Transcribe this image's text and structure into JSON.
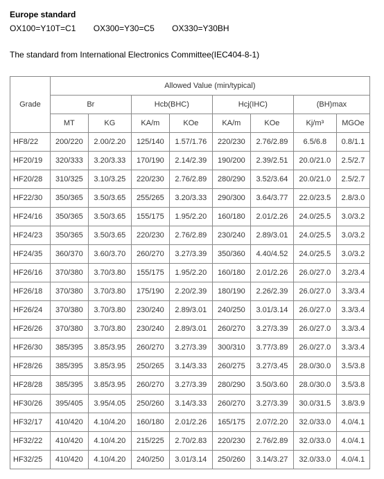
{
  "header": {
    "title": "Europe standard",
    "codes": [
      "OX100=Y10T=C1",
      "OX300=Y30=C5",
      "OX330=Y30BH"
    ],
    "subtitle": "The standard from International Electronics Committee(IEC404-8-1)"
  },
  "table": {
    "top_header": "Allowed Value (min/typical)",
    "grade_label": "Grade",
    "group_headers": [
      "Br",
      "Hcb(BHC)",
      "Hcj(IHC)",
      "(BH)max"
    ],
    "sub_headers": [
      "MT",
      "KG",
      "KA/m",
      "KOe",
      "KA/m",
      "KOe",
      "Kj/m³",
      "MGOe"
    ],
    "rows": [
      {
        "grade": "HF8/22",
        "cells": [
          "200/220",
          "2.00/2.20",
          "125/140",
          "1.57/1.76",
          "220/230",
          "2.76/2.89",
          "6.5/6.8",
          "0.8/1.1"
        ]
      },
      {
        "grade": "HF20/19",
        "cells": [
          "320/333",
          "3.20/3.33",
          "170/190",
          "2.14/2.39",
          "190/200",
          "2.39/2.51",
          "20.0/21.0",
          "2.5/2.7"
        ]
      },
      {
        "grade": "HF20/28",
        "cells": [
          "310/325",
          "3.10/3.25",
          "220/230",
          "2.76/2.89",
          "280/290",
          "3.52/3.64",
          "20.0/21.0",
          "2.5/2.7"
        ]
      },
      {
        "grade": "HF22/30",
        "cells": [
          "350/365",
          "3.50/3.65",
          "255/265",
          "3.20/3.33",
          "290/300",
          "3.64/3.77",
          "22.0/23.5",
          "2.8/3.0"
        ]
      },
      {
        "grade": "HF24/16",
        "cells": [
          "350/365",
          "3.50/3.65",
          "155/175",
          "1.95/2.20",
          "160/180",
          "2.01/2.26",
          "24.0/25.5",
          "3.0/3.2"
        ]
      },
      {
        "grade": "HF24/23",
        "cells": [
          "350/365",
          "3.50/3.65",
          "220/230",
          "2.76/2.89",
          "230/240",
          "2.89/3.01",
          "24.0/25.5",
          "3.0/3.2"
        ]
      },
      {
        "grade": "HF24/35",
        "cells": [
          "360/370",
          "3.60/3.70",
          "260/270",
          "3.27/3.39",
          "350/360",
          "4.40/4.52",
          "24.0/25.5",
          "3.0/3.2"
        ]
      },
      {
        "grade": "HF26/16",
        "cells": [
          "370/380",
          "3.70/3.80",
          "155/175",
          "1.95/2.20",
          "160/180",
          "2.01/2.26",
          "26.0/27.0",
          "3.2/3.4"
        ]
      },
      {
        "grade": "HF26/18",
        "cells": [
          "370/380",
          "3.70/3.80",
          "175/190",
          "2.20/2.39",
          "180/190",
          "2.26/2.39",
          "26.0/27.0",
          "3.3/3.4"
        ]
      },
      {
        "grade": "HF26/24",
        "cells": [
          "370/380",
          "3.70/3.80",
          "230/240",
          "2.89/3.01",
          "240/250",
          "3.01/3.14",
          "26.0/27.0",
          "3.3/3.4"
        ]
      },
      {
        "grade": "HF26/26",
        "cells": [
          "370/380",
          "3.70/3.80",
          "230/240",
          "2.89/3.01",
          "260/270",
          "3.27/3.39",
          "26.0/27.0",
          "3.3/3.4"
        ]
      },
      {
        "grade": "HF26/30",
        "cells": [
          "385/395",
          "3.85/3.95",
          "260/270",
          "3.27/3.39",
          "300/310",
          "3.77/3.89",
          "26.0/27.0",
          "3.3/3.4"
        ]
      },
      {
        "grade": "HF28/26",
        "cells": [
          "385/395",
          "3.85/3.95",
          "250/265",
          "3.14/3.33",
          "260/275",
          "3.27/3.45",
          "28.0/30.0",
          "3.5/3.8"
        ]
      },
      {
        "grade": "HF28/28",
        "cells": [
          "385/395",
          "3.85/3.95",
          "260/270",
          "3.27/3.39",
          "280/290",
          "3.50/3.60",
          "28.0/30.0",
          "3.5/3.8"
        ]
      },
      {
        "grade": "HF30/26",
        "cells": [
          "395/405",
          "3.95/4.05",
          "250/260",
          "3.14/3.33",
          "260/270",
          "3.27/3.39",
          "30.0/31.5",
          "3.8/3.9"
        ]
      },
      {
        "grade": "HF32/17",
        "cells": [
          "410/420",
          "4.10/4.20",
          "160/180",
          "2.01/2.26",
          "165/175",
          "2.07/2.20",
          "32.0/33.0",
          "4.0/4.1"
        ]
      },
      {
        "grade": "HF32/22",
        "cells": [
          "410/420",
          "4.10/4.20",
          "215/225",
          "2.70/2.83",
          "220/230",
          "2.76/2.89",
          "32.0/33.0",
          "4.0/4.1"
        ]
      },
      {
        "grade": "HF32/25",
        "cells": [
          "410/420",
          "4.10/4.20",
          "240/250",
          "3.01/3.14",
          "250/260",
          "3.14/3.27",
          "32.0/33.0",
          "4.0/4.1"
        ]
      }
    ]
  }
}
